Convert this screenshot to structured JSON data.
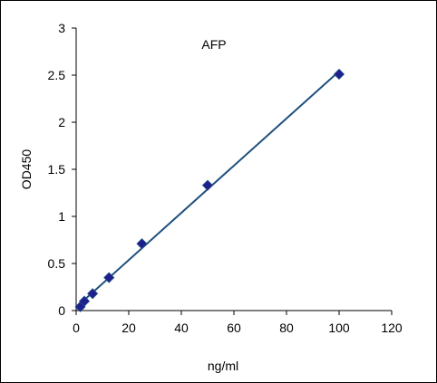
{
  "chart_data": {
    "type": "scatter",
    "title": "AFP",
    "xlabel": "ng/ml",
    "ylabel": "OD450",
    "xlim": [
      0,
      120
    ],
    "ylim": [
      0,
      3
    ],
    "x_ticks": [
      "0",
      "20",
      "40",
      "60",
      "80",
      "100",
      "120"
    ],
    "y_ticks": [
      "0",
      "0.5",
      "1",
      "1.5",
      "2",
      "2.5",
      "3"
    ],
    "grid": false,
    "legend": "none",
    "trendline": "linear",
    "series": [
      {
        "x": [
          1.56,
          3.12,
          6.25,
          12.5,
          25,
          50,
          100
        ],
        "y": [
          0.04,
          0.1,
          0.18,
          0.35,
          0.71,
          1.33,
          2.51
        ]
      }
    ],
    "colors": {
      "marker": "#1f1f8f",
      "line": "#1f4f7f",
      "axis": "#000000"
    }
  }
}
